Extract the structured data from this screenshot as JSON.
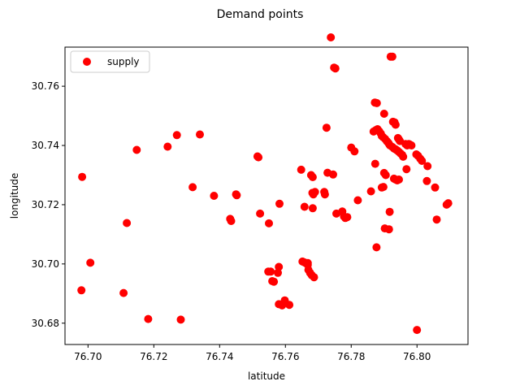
{
  "chart_data": {
    "type": "scatter",
    "title": "Demand points",
    "xlabel": "latitude",
    "ylabel": "longitude",
    "xlim": [
      76.693,
      76.8155
    ],
    "ylim": [
      30.6728,
      30.7732
    ],
    "xticks": [
      76.7,
      76.72,
      76.74,
      76.76,
      76.78,
      76.8
    ],
    "xtick_labels": [
      "76.70",
      "76.72",
      "76.74",
      "76.76",
      "76.78",
      "76.80"
    ],
    "yticks": [
      30.68,
      30.7,
      30.72,
      30.74,
      30.76
    ],
    "ytick_labels": [
      "30.68",
      "30.70",
      "30.72",
      "30.74",
      "30.76"
    ],
    "grid": false,
    "legend_position": "top-left",
    "colors": {
      "marker": "#ff0000",
      "axes": "#000000",
      "background": "#ffffff"
    },
    "series": [
      {
        "name": "supply",
        "marker": "circle",
        "points": [
          [
            76.6982,
            30.7294
          ],
          [
            76.7007,
            30.7004
          ],
          [
            76.698,
            30.6911
          ],
          [
            76.7108,
            30.6902
          ],
          [
            76.7118,
            30.7138
          ],
          [
            76.7148,
            30.7385
          ],
          [
            76.7183,
            30.6814
          ],
          [
            76.7242,
            30.7396
          ],
          [
            76.727,
            30.7435
          ],
          [
            76.7282,
            30.6812
          ],
          [
            76.7318,
            30.7259
          ],
          [
            76.734,
            30.7437
          ],
          [
            76.7383,
            30.723
          ],
          [
            76.7432,
            30.7152
          ],
          [
            76.7435,
            30.7145
          ],
          [
            76.745,
            30.7235
          ],
          [
            76.7452,
            30.7232
          ],
          [
            76.7515,
            30.7363
          ],
          [
            76.7518,
            30.736
          ],
          [
            76.7523,
            30.717
          ],
          [
            76.755,
            30.7137
          ],
          [
            76.7548,
            30.6974
          ],
          [
            76.7555,
            30.6974
          ],
          [
            76.756,
            30.6942
          ],
          [
            76.7565,
            30.694
          ],
          [
            76.7577,
            30.697
          ],
          [
            76.758,
            30.699
          ],
          [
            76.7582,
            30.7203
          ],
          [
            76.758,
            30.6864
          ],
          [
            76.759,
            30.686
          ],
          [
            76.7598,
            30.6877
          ],
          [
            76.7612,
            30.6862
          ],
          [
            76.7648,
            30.7318
          ],
          [
            76.7652,
            30.7008
          ],
          [
            76.7658,
            30.7005
          ],
          [
            76.7662,
            30.7003
          ],
          [
            76.7658,
            30.7193
          ],
          [
            76.7668,
            30.7003
          ],
          [
            76.7668,
            30.6997
          ],
          [
            76.767,
            30.698
          ],
          [
            76.7675,
            30.697
          ],
          [
            76.7678,
            30.73
          ],
          [
            76.7683,
            30.7293
          ],
          [
            76.768,
            30.6962
          ],
          [
            76.7687,
            30.6955
          ],
          [
            76.7682,
            30.724
          ],
          [
            76.7685,
            30.7235
          ],
          [
            76.769,
            30.7243
          ],
          [
            76.7683,
            30.7188
          ],
          [
            76.7718,
            30.7243
          ],
          [
            76.772,
            30.7235
          ],
          [
            76.7725,
            30.746
          ],
          [
            76.7728,
            30.7308
          ],
          [
            76.7738,
            30.7765
          ],
          [
            76.7745,
            30.7302
          ],
          [
            76.7748,
            30.7663
          ],
          [
            76.7752,
            30.766
          ],
          [
            76.7755,
            30.717
          ],
          [
            76.7773,
            30.7177
          ],
          [
            76.7778,
            30.716
          ],
          [
            76.7782,
            30.7155
          ],
          [
            76.7788,
            30.7158
          ],
          [
            76.78,
            30.7393
          ],
          [
            76.781,
            30.738
          ],
          [
            76.782,
            30.7215
          ],
          [
            76.786,
            30.7245
          ],
          [
            76.7872,
            30.7545
          ],
          [
            76.7878,
            30.7543
          ],
          [
            76.7873,
            30.7338
          ],
          [
            76.7877,
            30.7056
          ],
          [
            76.7868,
            30.7447
          ],
          [
            76.7875,
            30.7452
          ],
          [
            76.788,
            30.7455
          ],
          [
            76.7885,
            30.7448
          ],
          [
            76.789,
            30.744
          ],
          [
            76.7893,
            30.7432
          ],
          [
            76.7897,
            30.7428
          ],
          [
            76.7893,
            30.7258
          ],
          [
            76.7898,
            30.726
          ],
          [
            76.79,
            30.7507
          ],
          [
            76.79,
            30.7307
          ],
          [
            76.7905,
            30.73
          ],
          [
            76.7902,
            30.712
          ],
          [
            76.7915,
            30.7117
          ],
          [
            76.7903,
            30.7422
          ],
          [
            76.7908,
            30.7415
          ],
          [
            76.7912,
            30.741
          ],
          [
            76.7915,
            30.7405
          ],
          [
            76.7918,
            30.74
          ],
          [
            76.7917,
            30.7176
          ],
          [
            76.792,
            30.77
          ],
          [
            76.7925,
            30.77
          ],
          [
            76.7925,
            30.7395
          ],
          [
            76.793,
            30.739
          ],
          [
            76.7935,
            30.7387
          ],
          [
            76.794,
            30.7383
          ],
          [
            76.7945,
            30.7378
          ],
          [
            76.795,
            30.7373
          ],
          [
            76.7955,
            30.7368
          ],
          [
            76.7958,
            30.7362
          ],
          [
            76.7927,
            30.748
          ],
          [
            76.7932,
            30.7478
          ],
          [
            76.7935,
            30.747
          ],
          [
            76.793,
            30.7288
          ],
          [
            76.7935,
            30.7285
          ],
          [
            76.794,
            30.7282
          ],
          [
            76.7945,
            30.7285
          ],
          [
            76.7942,
            30.7425
          ],
          [
            76.7945,
            30.742
          ],
          [
            76.7948,
            30.7415
          ],
          [
            76.7965,
            30.7405
          ],
          [
            76.797,
            30.74
          ],
          [
            76.7975,
            30.7405
          ],
          [
            76.7978,
            30.7403
          ],
          [
            76.7983,
            30.74
          ],
          [
            76.7968,
            30.732
          ],
          [
            76.7998,
            30.737
          ],
          [
            76.8003,
            30.7365
          ],
          [
            76.801,
            30.7355
          ],
          [
            76.8015,
            30.7348
          ],
          [
            76.8032,
            30.733
          ],
          [
            76.803,
            30.728
          ],
          [
            76.8,
            30.6777
          ],
          [
            76.8055,
            30.7258
          ],
          [
            76.806,
            30.715
          ],
          [
            76.809,
            30.72
          ],
          [
            76.8095,
            30.7205
          ]
        ]
      }
    ]
  }
}
